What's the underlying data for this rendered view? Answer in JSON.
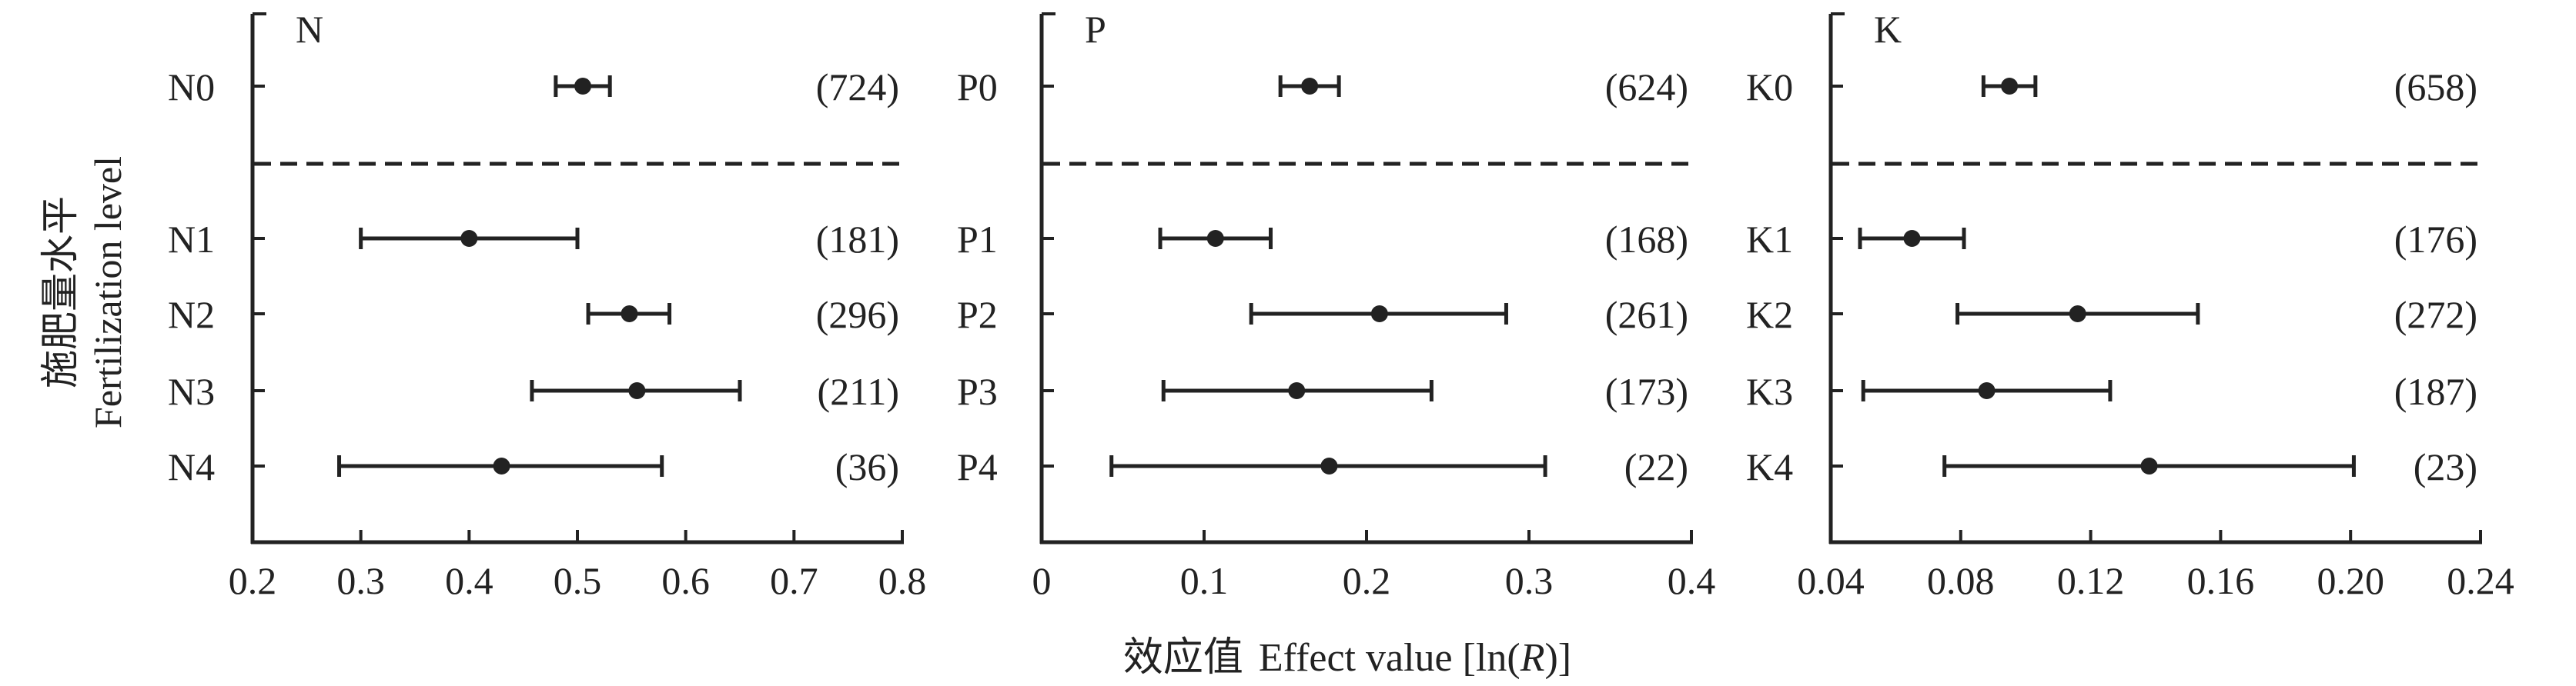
{
  "ylabel_cn": "施肥量水平",
  "ylabel_en": "Fertilization level",
  "xlabel_cn": "效应值",
  "xlabel_en": "Effect value [ln(",
  "xlabel_var": "R",
  "xlabel_close": ")]",
  "chart_data": [
    {
      "type": "scatter",
      "title": "N",
      "xlim": [
        0.2,
        0.8
      ],
      "xticks": [
        "0.2",
        "0.3",
        "0.4",
        "0.5",
        "0.6",
        "0.7",
        "0.8"
      ],
      "tick_values": [
        0.2,
        0.3,
        0.4,
        0.5,
        0.6,
        0.7,
        0.8
      ],
      "points": [
        {
          "label": "N0",
          "mean": 0.505,
          "lo": 0.48,
          "hi": 0.53,
          "count": "(724)"
        },
        {
          "label": "N1",
          "mean": 0.4,
          "lo": 0.3,
          "hi": 0.5,
          "count": "(181)"
        },
        {
          "label": "N2",
          "mean": 0.548,
          "lo": 0.51,
          "hi": 0.585,
          "count": "(296)"
        },
        {
          "label": "N3",
          "mean": 0.555,
          "lo": 0.458,
          "hi": 0.65,
          "count": "(211)"
        },
        {
          "label": "N4",
          "mean": 0.43,
          "lo": 0.28,
          "hi": 0.578,
          "count": "(36)"
        }
      ]
    },
    {
      "type": "scatter",
      "title": "P",
      "xlim": [
        0,
        0.4
      ],
      "xticks": [
        "0",
        "0.1",
        "0.2",
        "0.3",
        "0.4"
      ],
      "tick_values": [
        0,
        0.1,
        0.2,
        0.3,
        0.4
      ],
      "points": [
        {
          "label": "P0",
          "mean": 0.165,
          "lo": 0.147,
          "hi": 0.183,
          "count": "(624)"
        },
        {
          "label": "P1",
          "mean": 0.107,
          "lo": 0.073,
          "hi": 0.141,
          "count": "(168)"
        },
        {
          "label": "P2",
          "mean": 0.208,
          "lo": 0.129,
          "hi": 0.286,
          "count": "(261)"
        },
        {
          "label": "P3",
          "mean": 0.157,
          "lo": 0.075,
          "hi": 0.24,
          "count": "(173)"
        },
        {
          "label": "P4",
          "mean": 0.177,
          "lo": 0.043,
          "hi": 0.31,
          "count": "(22)"
        }
      ]
    },
    {
      "type": "scatter",
      "title": "K",
      "xlim": [
        0.04,
        0.24
      ],
      "xticks": [
        "0.04",
        "0.08",
        "0.12",
        "0.16",
        "0.20",
        "0.24"
      ],
      "tick_values": [
        0.04,
        0.08,
        0.12,
        0.16,
        0.2,
        0.24
      ],
      "points": [
        {
          "label": "K0",
          "mean": 0.095,
          "lo": 0.087,
          "hi": 0.103,
          "count": "(658)"
        },
        {
          "label": "K1",
          "mean": 0.065,
          "lo": 0.049,
          "hi": 0.081,
          "count": "(176)"
        },
        {
          "label": "K2",
          "mean": 0.116,
          "lo": 0.079,
          "hi": 0.153,
          "count": "(272)"
        },
        {
          "label": "K3",
          "mean": 0.088,
          "lo": 0.05,
          "hi": 0.126,
          "count": "(187)"
        },
        {
          "label": "K4",
          "mean": 0.138,
          "lo": 0.075,
          "hi": 0.201,
          "count": "(23)"
        }
      ]
    }
  ]
}
